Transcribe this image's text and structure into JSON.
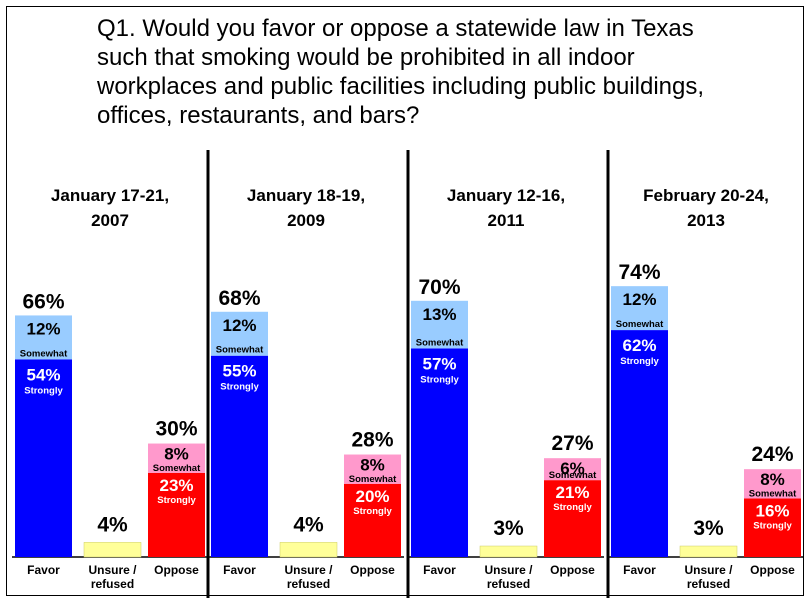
{
  "title": "Q1. Would you favor or oppose a statewide law in Texas such that smoking would be prohibited in all indoor workplaces and public facilities including public buildings, offices, restaurants, and bars?",
  "colors": {
    "strongly_favor": "#0000ff",
    "somewhat_favor": "#99ccff",
    "unsure": "#ffff99",
    "somewhat_oppose": "#ff99cc",
    "strongly_oppose": "#ff0000"
  },
  "chart_data": {
    "type": "bar",
    "stacked": true,
    "ylim": [
      0,
      100
    ],
    "categories": [
      "Favor",
      "Unsure / refused",
      "Oppose"
    ],
    "segment_labels": {
      "strongly": "Strongly",
      "somewhat": "Somewhat"
    },
    "panels": [
      {
        "title": [
          "January 17-21,",
          "2007"
        ],
        "favor": {
          "total": "66%",
          "strongly": 54,
          "strongly_label": "54%",
          "somewhat": 12,
          "somewhat_label": "12%"
        },
        "unsure": {
          "value": 4,
          "label": "4%"
        },
        "oppose": {
          "total": "30%",
          "strongly": 23,
          "strongly_label": "23%",
          "somewhat": 8,
          "somewhat_label": "8%"
        }
      },
      {
        "title": [
          "January 18-19,",
          "2009"
        ],
        "favor": {
          "total": "68%",
          "strongly": 55,
          "strongly_label": "55%",
          "somewhat": 12,
          "somewhat_label": "12%"
        },
        "unsure": {
          "value": 4,
          "label": "4%"
        },
        "oppose": {
          "total": "28%",
          "strongly": 20,
          "strongly_label": "20%",
          "somewhat": 8,
          "somewhat_label": "8%"
        }
      },
      {
        "title": [
          "January 12-16,",
          "2011"
        ],
        "favor": {
          "total": "70%",
          "strongly": 57,
          "strongly_label": "57%",
          "somewhat": 13,
          "somewhat_label": "13%"
        },
        "unsure": {
          "value": 3,
          "label": "3%"
        },
        "oppose": {
          "total": "27%",
          "strongly": 21,
          "strongly_label": "21%",
          "somewhat": 6,
          "somewhat_label": "6%"
        }
      },
      {
        "title": [
          "February 20-24,",
          "2013"
        ],
        "favor": {
          "total": "74%",
          "strongly": 62,
          "strongly_label": "62%",
          "somewhat": 12,
          "somewhat_label": "12%"
        },
        "unsure": {
          "value": 3,
          "label": "3%"
        },
        "oppose": {
          "total": "24%",
          "strongly": 16,
          "strongly_label": "16%",
          "somewhat": 8,
          "somewhat_label": "8%"
        }
      }
    ]
  }
}
